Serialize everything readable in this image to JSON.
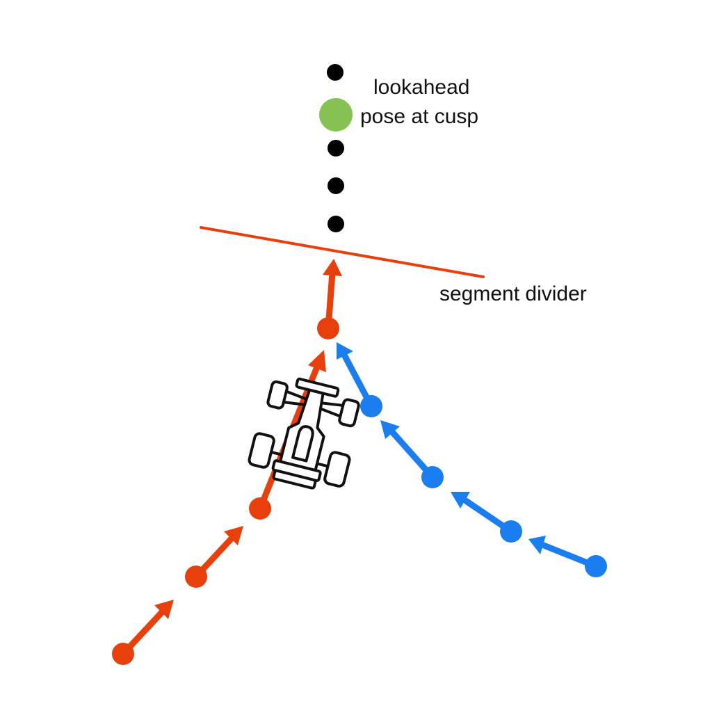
{
  "labels": {
    "lookahead": "lookahead",
    "pose_at_cusp": "pose at cusp",
    "segment_divider": "segment divider"
  },
  "colors": {
    "forward_path": "#e8400c",
    "reverse_path": "#1a7ef0",
    "cusp_pose": "#86c154",
    "lookahead_points": "#000000",
    "robot_outline": "#111111"
  },
  "icons": {
    "robot": "race-car-icon"
  }
}
